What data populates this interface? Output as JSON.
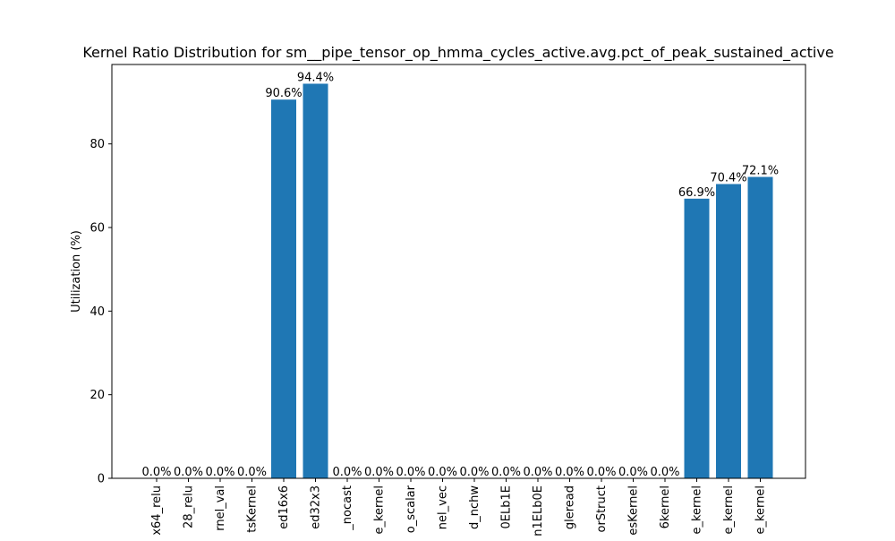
{
  "chart_data": {
    "type": "bar",
    "title": "Kernel Ratio Distribution for sm__pipe_tensor_op_hmma_cycles_active.avg.pct_of_peak_sustained_active",
    "xlabel": "",
    "ylabel": "Utilization (%)",
    "ylim": [
      0,
      99
    ],
    "yticks": [
      0,
      20,
      40,
      60,
      80
    ],
    "grid": false,
    "bar_color": "#1f77b4",
    "categories": [
      "x64_relu",
      "28_relu",
      "rnel_val",
      "tsKernel",
      "ed16x6",
      "ed32x3",
      "_nocast",
      "e_kernel",
      "o_scalar",
      "nel_vec",
      "d_nchw",
      "0ELb1E",
      "n1ELb0E",
      "gleread",
      "orStruct",
      "esKernel",
      "6kernel",
      "e_kernel",
      "e_kernel",
      "e_kernel"
    ],
    "values": [
      0.0,
      0.0,
      0.0,
      0.0,
      90.6,
      94.4,
      0.0,
      0.0,
      0.0,
      0.0,
      0.0,
      0.0,
      0.0,
      0.0,
      0.0,
      0.0,
      0.0,
      66.9,
      70.4,
      72.1
    ],
    "labels": [
      "0.0%",
      "0.0%",
      "0.0%",
      "0.0%",
      "90.6%",
      "94.4%",
      "0.0%",
      "0.0%",
      "0.0%",
      "0.0%",
      "0.0%",
      "0.0%",
      "0.0%",
      "0.0%",
      "0.0%",
      "0.0%",
      "0.0%",
      "66.9%",
      "70.4%",
      "72.1%"
    ]
  }
}
